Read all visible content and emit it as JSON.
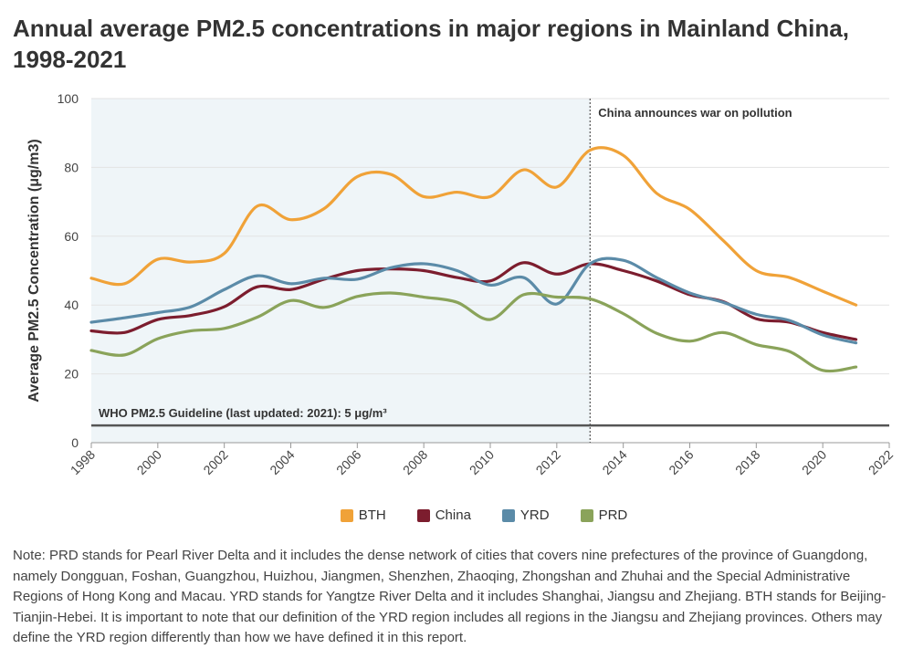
{
  "title": "Annual average PM2.5 concentrations in major regions in Mainland China, 1998-2021",
  "chart_data": {
    "type": "line",
    "title": "Annual average PM2.5 concentrations in major regions in Mainland China, 1998-2021",
    "xlabel": "",
    "ylabel": "Average PM2.5 Concentration (μg/m3)",
    "xlim": [
      1998,
      2022
    ],
    "ylim": [
      0,
      100
    ],
    "x_ticks": [
      1998,
      2000,
      2002,
      2004,
      2006,
      2008,
      2010,
      2012,
      2014,
      2016,
      2018,
      2020,
      2022
    ],
    "y_ticks": [
      0,
      20,
      40,
      60,
      80,
      100
    ],
    "grid": true,
    "shaded_region": {
      "from": 1998,
      "to": 2013
    },
    "vline": {
      "x": 2013,
      "label": "China announces war on pollution"
    },
    "hline": {
      "y": 5,
      "label": "WHO PM2.5 Guideline (last updated: 2021): 5 μg/m³"
    },
    "x": [
      1998,
      1999,
      2000,
      2001,
      2002,
      2003,
      2004,
      2005,
      2006,
      2007,
      2008,
      2009,
      2010,
      2011,
      2012,
      2013,
      2014,
      2015,
      2016,
      2017,
      2018,
      2019,
      2020,
      2021
    ],
    "series": [
      {
        "name": "BTH",
        "color": "#f0a238",
        "values": [
          47.8,
          46.2,
          53.3,
          52.5,
          55.0,
          68.8,
          64.8,
          68.0,
          77.3,
          78.0,
          71.5,
          72.8,
          71.5,
          79.3,
          74.3,
          85.0,
          83.5,
          72.5,
          67.8,
          58.8,
          50.0,
          48.0,
          44.0,
          40.0
        ]
      },
      {
        "name": "China",
        "color": "#7c1d2e",
        "values": [
          32.5,
          32.0,
          35.8,
          37.0,
          39.5,
          45.3,
          44.5,
          47.5,
          50.0,
          50.5,
          50.0,
          48.0,
          47.0,
          52.3,
          49.0,
          52.0,
          50.0,
          47.0,
          43.0,
          41.0,
          36.0,
          35.0,
          32.0,
          30.0
        ]
      },
      {
        "name": "YRD",
        "color": "#5b8ba8",
        "values": [
          35.0,
          36.3,
          37.8,
          39.5,
          44.5,
          48.5,
          46.2,
          47.8,
          47.5,
          50.8,
          52.0,
          50.0,
          45.8,
          48.0,
          40.3,
          52.0,
          53.0,
          48.0,
          43.5,
          40.8,
          37.3,
          35.5,
          31.3,
          29.0
        ]
      },
      {
        "name": "PRD",
        "color": "#8aa35a",
        "values": [
          26.8,
          25.5,
          30.2,
          32.5,
          33.2,
          36.5,
          41.3,
          39.3,
          42.5,
          43.5,
          42.3,
          40.8,
          35.8,
          43.0,
          42.3,
          41.8,
          37.5,
          31.8,
          29.5,
          32.0,
          28.5,
          26.5,
          21.0,
          22.0
        ]
      }
    ]
  },
  "legend": {
    "items": [
      {
        "label": "BTH",
        "color": "#f0a238"
      },
      {
        "label": "China",
        "color": "#7c1d2e"
      },
      {
        "label": "YRD",
        "color": "#5b8ba8"
      },
      {
        "label": "PRD",
        "color": "#8aa35a"
      }
    ]
  },
  "note": "Note: PRD stands for Pearl River Delta and it includes the dense network of cities that covers nine prefectures of the province of Guangdong, namely Dongguan, Foshan, Guangzhou, Huizhou, Jiangmen, Shenzhen, Zhaoqing, Zhongshan and Zhuhai and the Special Administrative Regions of Hong Kong and Macau. YRD stands for Yangtze River Delta and it includes Shanghai, Jiangsu and Zhejiang. BTH stands for Beijing-Tianjin-Hebei. It is important to note that our definition of the YRD region includes all regions in the Jiangsu and Zhejiang provinces. Others may define the YRD region differently than how we have defined it in this report."
}
